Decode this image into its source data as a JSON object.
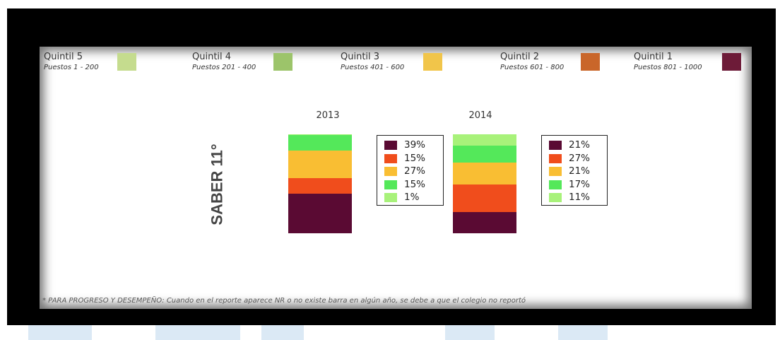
{
  "legend": [
    {
      "title": "Quintil 5",
      "sub": "Puestos 1 - 200",
      "color": "#c5dc8e"
    },
    {
      "title": "Quintil 4",
      "sub": "Puestos 201 - 400",
      "color": "#9cc46a"
    },
    {
      "title": "Quintil 3",
      "sub": "Puestos 401 - 600",
      "color": "#f1c54a"
    },
    {
      "title": "Quintil 2",
      "sub": "Puestos 601 - 800",
      "color": "#c9662a"
    },
    {
      "title": "Quintil 1",
      "sub": "Puestos 801 - 1000",
      "color": "#6d1b38"
    }
  ],
  "chart_data": {
    "type": "bar",
    "stacked": true,
    "row_label": "SABER 11°",
    "categories": [
      "2013",
      "2014"
    ],
    "series": [
      {
        "name": "Quintil 1",
        "color": "#5a0a33",
        "values": [
          39,
          21
        ]
      },
      {
        "name": "Quintil 2",
        "color": "#f04d1c",
        "values": [
          15,
          27
        ]
      },
      {
        "name": "Quintil 3",
        "color": "#f9be33",
        "values": [
          27,
          21
        ]
      },
      {
        "name": "Quintil 4",
        "color": "#54e85a",
        "values": [
          15,
          17
        ]
      },
      {
        "name": "Quintil 5",
        "color": "#a8f27a",
        "values": [
          1,
          11
        ]
      }
    ],
    "value_labels": {
      "2013": [
        "39%",
        "15%",
        "27%",
        "15%",
        "1%"
      ],
      "2014": [
        "21%",
        "27%",
        "21%",
        "17%",
        "11%"
      ]
    }
  },
  "footnote": "* PARA PROGRESO Y DESEMPEÑO: Cuando en el reporte aparece NR o no existe barra en algún año, se debe a que el colegio no reportó"
}
